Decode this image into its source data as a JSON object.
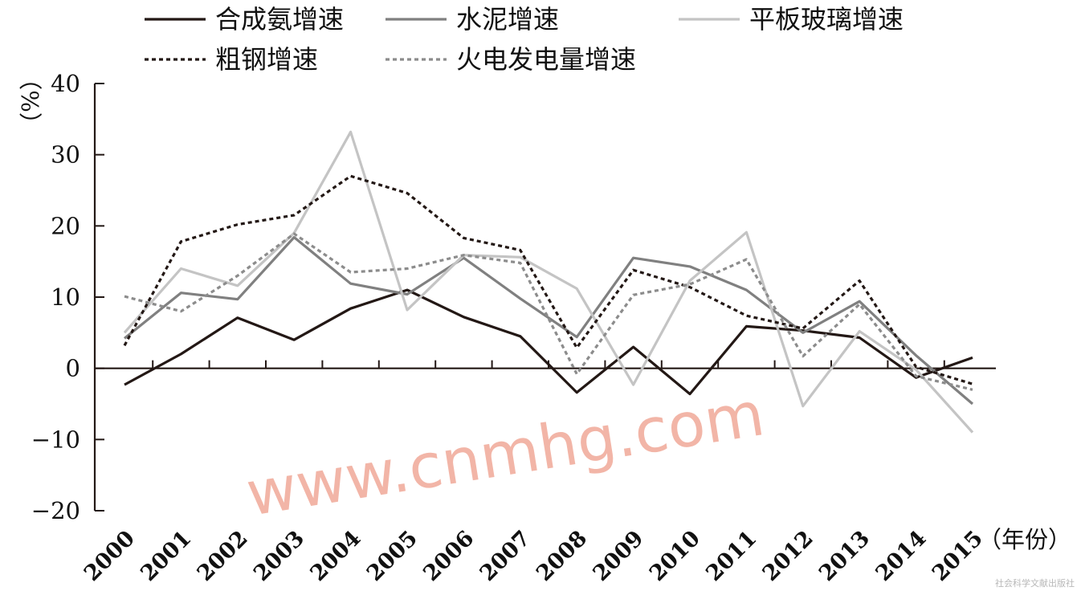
{
  "chart_data": {
    "type": "line",
    "title": "",
    "y_unit_label": "（%）",
    "x_unit_label": "（年份）",
    "x": [
      "2000",
      "2001",
      "2002",
      "2003",
      "2004",
      "2005",
      "2006",
      "2007",
      "2008",
      "2009",
      "2010",
      "2011",
      "2012",
      "2013",
      "2014",
      "2015"
    ],
    "ylim": [
      -20,
      40
    ],
    "y_ticks": [
      {
        "value": 40,
        "label": "40"
      },
      {
        "value": 30,
        "label": "30"
      },
      {
        "value": 20,
        "label": "20"
      },
      {
        "value": 10,
        "label": "10"
      },
      {
        "value": 0,
        "label": "0"
      },
      {
        "value": -10,
        "label": "−10"
      },
      {
        "value": -20,
        "label": "−20"
      }
    ],
    "grid": false,
    "legend_position": "top",
    "series": [
      {
        "name": "合成氨增速",
        "color": "#231815",
        "dash": "solid",
        "values": [
          -2.3,
          2.0,
          7.1,
          4.0,
          8.4,
          11.0,
          7.2,
          4.5,
          -3.4,
          3.0,
          -3.6,
          5.9,
          5.3,
          4.3,
          -1.3,
          1.5
        ]
      },
      {
        "name": "水泥增速",
        "color": "#808080",
        "dash": "solid",
        "values": [
          4.2,
          10.6,
          9.7,
          18.4,
          11.9,
          10.4,
          15.5,
          9.8,
          4.4,
          15.5,
          14.3,
          11.0,
          5.0,
          9.4,
          1.8,
          -5.0
        ]
      },
      {
        "name": "平板玻璃增速",
        "color": "#c4c4c4",
        "dash": "solid",
        "values": [
          5.0,
          14.0,
          11.6,
          19.0,
          33.2,
          8.2,
          15.9,
          15.6,
          11.2,
          -2.3,
          12.3,
          19.1,
          -5.3,
          5.2,
          -0.2,
          -9.0
        ]
      },
      {
        "name": "粗钢增速",
        "color": "#231815",
        "dash": "dotted",
        "values": [
          3.2,
          17.8,
          20.2,
          21.5,
          27.0,
          24.6,
          18.3,
          16.6,
          2.9,
          13.8,
          11.4,
          7.4,
          5.6,
          12.3,
          0.2,
          -2.2
        ]
      },
      {
        "name": "火电发电量增速",
        "color": "#8c8c8c",
        "dash": "dotted",
        "values": [
          10.1,
          8.0,
          13.0,
          18.9,
          13.5,
          14.0,
          15.9,
          14.8,
          -0.8,
          10.3,
          11.8,
          15.3,
          1.7,
          9.0,
          -1.1,
          -3.0
        ]
      }
    ],
    "annotations": [
      "www.cnmhg.com",
      "社会科学文献出版社"
    ]
  }
}
